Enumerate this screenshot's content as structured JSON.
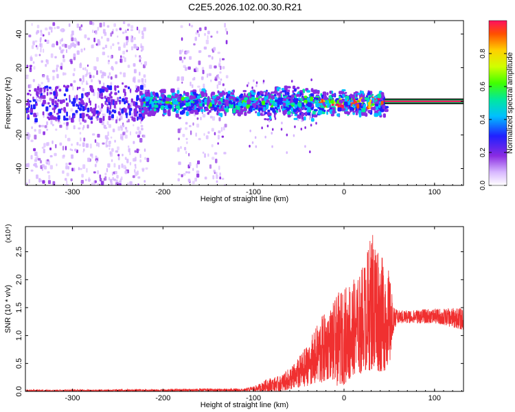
{
  "title": "C2E5.2026.102.00.30.R21",
  "chart_data": [
    {
      "type": "heatmap",
      "name": "spectrogram",
      "xlabel": "Height of straight line (km)",
      "ylabel": "Frequency (Hz)",
      "xlim": [
        -352,
        132
      ],
      "ylim": [
        -50,
        48
      ],
      "xticks": [
        -300,
        -200,
        -100,
        0,
        100
      ],
      "yticks": [
        -40,
        -20,
        0,
        20,
        40
      ],
      "colorbar": {
        "label": "Normalized spectral amplitude",
        "range": [
          0,
          1
        ],
        "ticks": [
          0.0,
          0.2,
          0.4,
          0.6,
          0.8
        ],
        "colors": [
          "#ffffff",
          "#d8b8ff",
          "#8a2be2",
          "#2020ff",
          "#00c0ff",
          "#00e8a0",
          "#40ff00",
          "#d0ff00",
          "#ffd000",
          "#ff5000",
          "#ff1060"
        ]
      },
      "scatter_regions": [
        {
          "xrange": [
            -352,
            -218
          ],
          "yrange": [
            -50,
            48
          ],
          "density": 0.55
        },
        {
          "xrange": [
            -185,
            -130
          ],
          "yrange": [
            -50,
            48
          ],
          "density": 0.4
        }
      ],
      "band": {
        "xrange": [
          -225,
          45
        ],
        "center": 0,
        "halfwidth": 8
      },
      "line": {
        "xrange": [
          45,
          132
        ],
        "freq": 0,
        "amplitude": 1.0
      }
    },
    {
      "type": "line",
      "name": "snr",
      "xlabel": "Height of straight line (km)",
      "ylabel": "SNR (10 * v/v)",
      "multiplier": "(x10⁴)",
      "xlim": [
        -352,
        132
      ],
      "ylim": [
        0,
        2.95
      ],
      "xticks": [
        -300,
        -200,
        -100,
        0,
        100
      ],
      "yticks": [
        0.0,
        0.5,
        1.0,
        1.5,
        2.0,
        2.5
      ],
      "color": "#f03030",
      "envelope": [
        {
          "x": -352,
          "min": 0.0,
          "max": 0.03
        },
        {
          "x": -200,
          "min": 0.0,
          "max": 0.04
        },
        {
          "x": -170,
          "min": 0.0,
          "max": 0.05
        },
        {
          "x": -110,
          "min": 0.0,
          "max": 0.05
        },
        {
          "x": -95,
          "min": 0.0,
          "max": 0.12
        },
        {
          "x": -85,
          "min": 0.0,
          "max": 0.23
        },
        {
          "x": -70,
          "min": 0.0,
          "max": 0.28
        },
        {
          "x": -55,
          "min": 0.05,
          "max": 0.5
        },
        {
          "x": -40,
          "min": 0.1,
          "max": 0.85
        },
        {
          "x": -25,
          "min": 0.15,
          "max": 1.35
        },
        {
          "x": -15,
          "min": 0.25,
          "max": 1.5
        },
        {
          "x": -5,
          "min": 0.05,
          "max": 1.8
        },
        {
          "x": 5,
          "min": 0.2,
          "max": 1.95
        },
        {
          "x": 15,
          "min": 0.3,
          "max": 2.05
        },
        {
          "x": 25,
          "min": 0.35,
          "max": 2.5
        },
        {
          "x": 32,
          "min": 0.4,
          "max": 2.95
        },
        {
          "x": 40,
          "min": 0.35,
          "max": 2.5
        },
        {
          "x": 50,
          "min": 0.4,
          "max": 2.15
        },
        {
          "x": 55,
          "min": 1.1,
          "max": 1.5
        },
        {
          "x": 60,
          "min": 1.22,
          "max": 1.45
        },
        {
          "x": 100,
          "min": 1.22,
          "max": 1.48
        },
        {
          "x": 132,
          "min": 1.1,
          "max": 1.5
        }
      ]
    }
  ]
}
